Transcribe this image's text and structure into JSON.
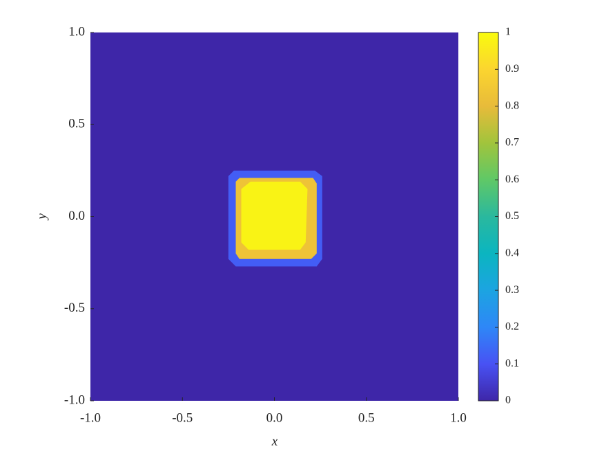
{
  "chart_data": {
    "type": "contour",
    "xlabel": "x",
    "ylabel": "y",
    "xlim": [
      -1,
      1
    ],
    "ylim": [
      -1,
      1
    ],
    "xticks": [
      {
        "value": -1,
        "label": "-1.0"
      },
      -0.5,
      {
        "value": 0,
        "label": "0.0"
      },
      0.5,
      {
        "value": 1,
        "label": "1.0"
      }
    ],
    "yticks": [
      {
        "value": -1,
        "label": "-1.0"
      },
      -0.5,
      {
        "value": 0,
        "label": "0.0"
      },
      0.5,
      {
        "value": 1,
        "label": "1.0"
      }
    ],
    "clim": [
      0,
      1
    ],
    "cticks": [
      0,
      0.1,
      0.2,
      0.3,
      0.4,
      0.5,
      0.6,
      0.7,
      0.8,
      0.9,
      1
    ],
    "colormap": [
      "#3e26a8",
      "#4852f4",
      "#2e87f7",
      "#1ca4e1",
      "#0bb5c0",
      "#2ab89e",
      "#5fc867",
      "#a1c43c",
      "#e8bb3a",
      "#fbd52f",
      "#f9fb0e"
    ],
    "regions": [
      {
        "value": 0,
        "x": [
          -1,
          1,
          1,
          -1
        ],
        "y": [
          -1,
          -1,
          1,
          1
        ]
      },
      {
        "value": 0.12,
        "x": [
          -0.25,
          -0.22,
          0.22,
          0.26,
          0.26,
          0.23,
          -0.21,
          -0.25
        ],
        "y": [
          0.22,
          0.25,
          0.25,
          0.22,
          -0.23,
          -0.27,
          -0.27,
          -0.23
        ]
      },
      {
        "value": 0.83,
        "x": [
          -0.21,
          -0.19,
          0.21,
          0.23,
          0.23,
          0.2,
          -0.19,
          -0.21
        ],
        "y": [
          0.19,
          0.21,
          0.21,
          0.18,
          -0.2,
          -0.23,
          -0.23,
          -0.2
        ]
      },
      {
        "value": 0.98,
        "x": [
          -0.18,
          -0.13,
          0.14,
          0.18,
          0.17,
          0.14,
          -0.14,
          -0.18
        ],
        "y": [
          0.15,
          0.19,
          0.19,
          0.15,
          -0.14,
          -0.18,
          -0.18,
          -0.14
        ]
      }
    ]
  }
}
